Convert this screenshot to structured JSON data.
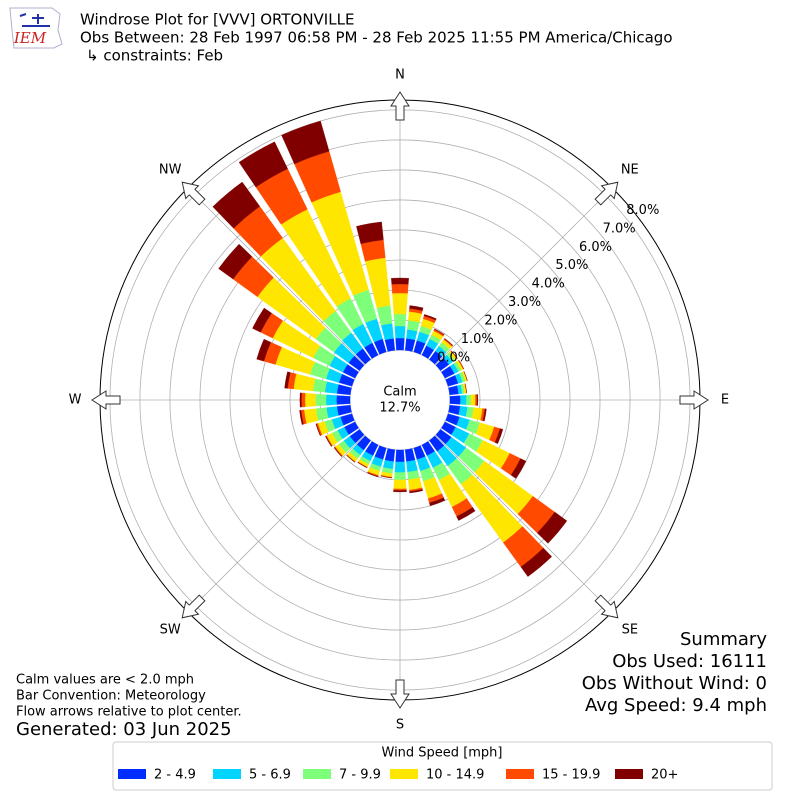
{
  "chart_data": {
    "type": "windrose",
    "title": [
      "Windrose Plot for [VVV] ORTONVILLE",
      "Obs Between: 28 Feb 1997 06:58 PM - 28 Feb 2025 11:55 PM America/Chicago",
      "↳ constraints: Feb"
    ],
    "logo_text": "IEM",
    "compass": [
      "N",
      "NE",
      "E",
      "SE",
      "S",
      "SW",
      "W",
      "NW"
    ],
    "x": [
      0,
      10,
      20,
      30,
      40,
      50,
      60,
      70,
      80,
      90,
      100,
      110,
      120,
      130,
      140,
      150,
      160,
      170,
      180,
      190,
      200,
      210,
      220,
      230,
      240,
      250,
      260,
      270,
      280,
      290,
      300,
      310,
      320,
      330,
      340,
      350
    ],
    "rlim": [
      0,
      8.33
    ],
    "rticks": [
      {
        "value": 0,
        "label": "0.0%"
      },
      {
        "value": 1,
        "label": "1.0%"
      },
      {
        "value": 2,
        "label": "2.0%"
      },
      {
        "value": 3,
        "label": "3.0%"
      },
      {
        "value": 4,
        "label": "4.0%"
      },
      {
        "value": 5,
        "label": "5.0%"
      },
      {
        "value": 6,
        "label": "6.0%"
      },
      {
        "value": 7,
        "label": "7.0%"
      },
      {
        "value": 8,
        "label": "8.0%"
      }
    ],
    "grid": true,
    "calm": {
      "label": "Calm",
      "value": 12.7,
      "value_label": "12.7%"
    },
    "legend_title": "Wind Speed [mph]",
    "series": [
      {
        "name": "2 - 4.9",
        "color": "#002cff",
        "values": [
          0.4,
          0.4,
          0.4,
          0.35,
          0.35,
          0.35,
          0.35,
          0.35,
          0.3,
          0.35,
          0.35,
          0.4,
          0.4,
          0.45,
          0.45,
          0.4,
          0.4,
          0.4,
          0.4,
          0.4,
          0.4,
          0.4,
          0.4,
          0.4,
          0.4,
          0.4,
          0.45,
          0.45,
          0.45,
          0.45,
          0.45,
          0.45,
          0.45,
          0.45,
          0.45,
          0.4
        ]
      },
      {
        "name": "5 - 6.9",
        "color": "#00d4ff",
        "values": [
          0.4,
          0.3,
          0.3,
          0.25,
          0.2,
          0.15,
          0.15,
          0.15,
          0.12,
          0.2,
          0.25,
          0.35,
          0.5,
          0.6,
          0.6,
          0.45,
          0.4,
          0.35,
          0.35,
          0.25,
          0.25,
          0.2,
          0.2,
          0.25,
          0.25,
          0.3,
          0.35,
          0.35,
          0.4,
          0.45,
          0.5,
          0.6,
          0.65,
          0.7,
          0.7,
          0.5
        ]
      },
      {
        "name": "7 - 9.9",
        "color": "#7dff7a",
        "values": [
          0.4,
          0.3,
          0.2,
          0.15,
          0.15,
          0.1,
          0.1,
          0.1,
          0.08,
          0.15,
          0.2,
          0.35,
          0.5,
          0.75,
          0.75,
          0.45,
          0.35,
          0.25,
          0.25,
          0.15,
          0.15,
          0.12,
          0.15,
          0.2,
          0.2,
          0.25,
          0.35,
          0.35,
          0.4,
          0.55,
          0.6,
          0.75,
          0.9,
          0.95,
          1.0,
          0.6
        ]
      },
      {
        "name": "10 - 14.9",
        "color": "#ffe600",
        "values": [
          0.7,
          0.3,
          0.25,
          0.15,
          0.12,
          0.08,
          0.08,
          0.06,
          0.06,
          0.15,
          0.3,
          0.5,
          1.0,
          2.0,
          2.4,
          1.0,
          0.6,
          0.35,
          0.3,
          0.12,
          0.15,
          0.1,
          0.12,
          0.15,
          0.2,
          0.23,
          0.4,
          0.35,
          0.65,
          1.2,
          1.5,
          2.4,
          3.0,
          3.3,
          3.4,
          1.6
        ]
      },
      {
        "name": "15 - 19.9",
        "color": "#ff4a00",
        "values": [
          0.3,
          0.1,
          0.1,
          0.05,
          0.03,
          0.02,
          0.02,
          0.01,
          0.01,
          0.05,
          0.08,
          0.2,
          0.4,
          0.9,
          1.0,
          0.35,
          0.15,
          0.05,
          0.05,
          0.02,
          0.03,
          0.02,
          0.02,
          0.03,
          0.03,
          0.05,
          0.1,
          0.12,
          0.2,
          0.4,
          0.45,
          1.0,
          1.3,
          1.5,
          1.4,
          0.6
        ]
      },
      {
        "name": "20+",
        "color": "#800000",
        "values": [
          0.2,
          0.1,
          0.05,
          0.02,
          0.02,
          0,
          0,
          0,
          0,
          0.03,
          0.05,
          0.1,
          0.2,
          0.5,
          0.4,
          0.15,
          0.1,
          0.05,
          0.05,
          0.01,
          0.02,
          0.01,
          0.01,
          0.02,
          0.02,
          0.02,
          0.05,
          0.05,
          0.1,
          0.25,
          0.3,
          0.6,
          1.0,
          1.0,
          1.05,
          0.6
        ]
      }
    ],
    "summary": [
      "Summary",
      "Obs Used: 16111",
      "Obs Without Wind: 0",
      "Avg Speed: 9.4 mph"
    ],
    "notes": [
      "Calm values are < 2.0 mph",
      "Bar Convention: Meteorology",
      "Flow arrows relative to plot center."
    ],
    "generated": "Generated: 03 Jun 2025"
  }
}
